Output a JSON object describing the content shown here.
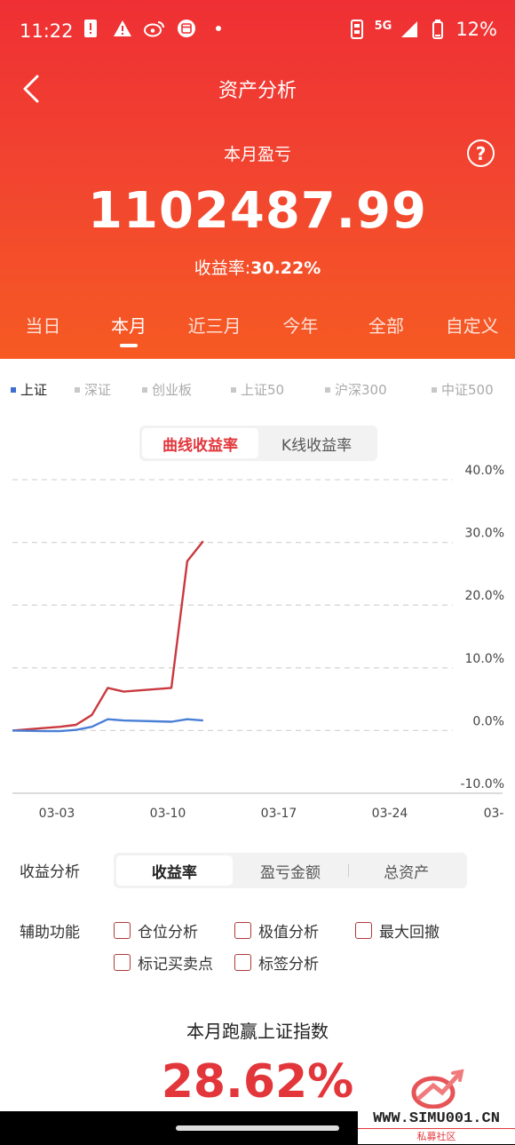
{
  "status": {
    "time": "11:22",
    "network": "5G",
    "battery": "12%"
  },
  "nav": {
    "title": "资产分析"
  },
  "summary": {
    "label": "本月盈亏",
    "value": "1102487.99",
    "rate_label": "收益率:",
    "rate_value": "30.22%"
  },
  "periods": [
    "当日",
    "本月",
    "近三月",
    "今年",
    "全部",
    "自定义"
  ],
  "active_period": "本月",
  "legend": [
    "上证",
    "深证",
    "创业板",
    "上证50",
    "沪深300",
    "中证500"
  ],
  "active_legend": "上证",
  "chart_toggle": {
    "options": [
      "曲线收益率",
      "K线收益率"
    ],
    "active": "曲线收益率"
  },
  "chart_data": {
    "type": "line",
    "x_ticks": [
      "03-03",
      "03-10",
      "03-17",
      "03-24",
      "03-"
    ],
    "y_ticks": [
      "40.0%",
      "30.0%",
      "20.0%",
      "10.0%",
      "0.0%",
      "-10.0%"
    ],
    "ylim": [
      -10,
      40
    ],
    "grid": true,
    "series": [
      {
        "color": "#c9393f",
        "points": [
          [
            0,
            0.0
          ],
          [
            2,
            0.4
          ],
          [
            3,
            0.6
          ],
          [
            4,
            0.9
          ],
          [
            5,
            2.5
          ],
          [
            6,
            6.8
          ],
          [
            7,
            6.2
          ],
          [
            10,
            6.8
          ],
          [
            11,
            27.0
          ],
          [
            12,
            30.2
          ]
        ]
      },
      {
        "color": "#4a7fd6",
        "points": [
          [
            0,
            0.0
          ],
          [
            2,
            -0.1
          ],
          [
            3,
            -0.1
          ],
          [
            4,
            0.1
          ],
          [
            5,
            0.6
          ],
          [
            6,
            1.8
          ],
          [
            7,
            1.6
          ],
          [
            10,
            1.4
          ],
          [
            11,
            1.8
          ],
          [
            12,
            1.6
          ]
        ]
      }
    ]
  },
  "analysis": {
    "label": "收益分析",
    "options": [
      "收益率",
      "盈亏金额",
      "总资产"
    ],
    "active": "收益率"
  },
  "aux": {
    "label": "辅助功能",
    "options": [
      "仓位分析",
      "极值分析",
      "最大回撤",
      "标记买卖点",
      "标签分析"
    ]
  },
  "beat": {
    "label": "本月跑赢上证指数",
    "value": "28.62%"
  },
  "watermark": {
    "text": "WWW.SIMU001.CN",
    "sub": "私募社区"
  }
}
